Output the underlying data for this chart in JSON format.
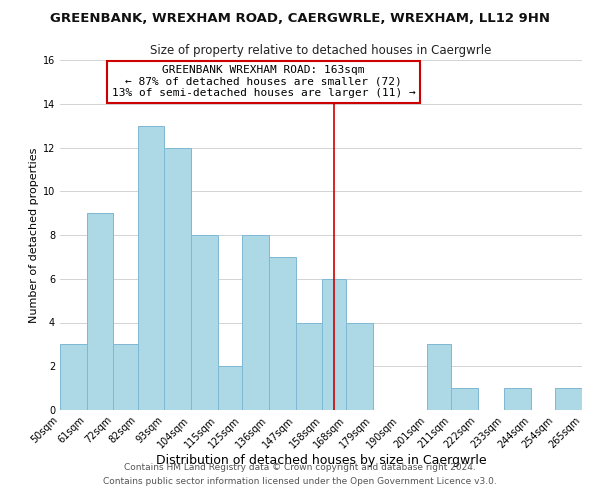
{
  "title": "GREENBANK, WREXHAM ROAD, CAERGWRLE, WREXHAM, LL12 9HN",
  "subtitle": "Size of property relative to detached houses in Caergwrle",
  "xlabel": "Distribution of detached houses by size in Caergwrle",
  "ylabel": "Number of detached properties",
  "bins": [
    50,
    61,
    72,
    82,
    93,
    104,
    115,
    125,
    136,
    147,
    158,
    168,
    179,
    190,
    201,
    211,
    222,
    233,
    244,
    254,
    265
  ],
  "counts": [
    3,
    9,
    3,
    13,
    12,
    8,
    2,
    8,
    7,
    4,
    6,
    4,
    0,
    0,
    3,
    1,
    0,
    1,
    0,
    1
  ],
  "bar_color": "#add8e6",
  "bar_edge_color": "#7fb8d4",
  "property_line_x": 163,
  "annotation_title": "GREENBANK WREXHAM ROAD: 163sqm",
  "annotation_line1": "← 87% of detached houses are smaller (72)",
  "annotation_line2": "13% of semi-detached houses are larger (11) →",
  "annotation_box_color": "#ffffff",
  "annotation_box_edge": "#cc0000",
  "vline_color": "#cc0000",
  "ylim": [
    0,
    16
  ],
  "yticks": [
    0,
    2,
    4,
    6,
    8,
    10,
    12,
    14,
    16
  ],
  "grid_color": "#cccccc",
  "footnote1": "Contains HM Land Registry data © Crown copyright and database right 2024.",
  "footnote2": "Contains public sector information licensed under the Open Government Licence v3.0.",
  "title_fontsize": 9.5,
  "subtitle_fontsize": 8.5,
  "xlabel_fontsize": 9,
  "ylabel_fontsize": 8,
  "tick_fontsize": 7,
  "annotation_fontsize": 8,
  "footnote_fontsize": 6.5
}
